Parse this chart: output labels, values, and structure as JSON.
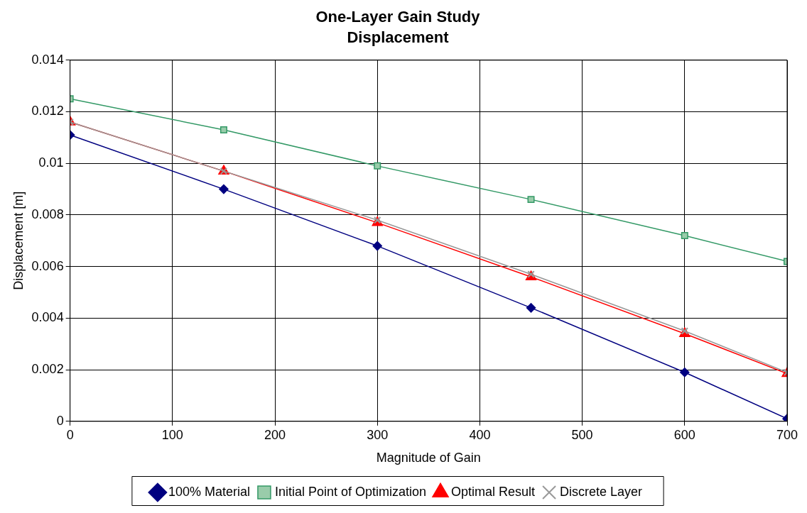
{
  "chart_data": {
    "type": "line",
    "title": "One-Layer Gain Study",
    "subtitle": "Displacement",
    "xlabel": "Magnitude of Gain",
    "ylabel": "Displacement [m]",
    "x": [
      0,
      150,
      300,
      450,
      600,
      700
    ],
    "series": [
      {
        "name": "100% Material",
        "color": "#000080",
        "marker": "diamond",
        "values": [
          0.0111,
          0.009,
          0.0068,
          0.0044,
          0.0019,
          0.0001
        ]
      },
      {
        "name": "Initial Point of Optimization",
        "color": "#339966",
        "marker": "square",
        "values": [
          0.0125,
          0.0113,
          0.0099,
          0.0086,
          0.0072,
          0.0062
        ]
      },
      {
        "name": "Optimal Result",
        "color": "#ff0000",
        "marker": "triangle",
        "values": [
          0.0116,
          0.0097,
          0.0077,
          0.0056,
          0.0034,
          0.00185
        ]
      },
      {
        "name": "Discrete Layer",
        "color": "#999999",
        "marker": "cross",
        "values": [
          0.0116,
          0.0097,
          0.0078,
          0.0057,
          0.0035,
          0.0019
        ]
      }
    ],
    "xlim": [
      0,
      700
    ],
    "xticks": [
      0,
      100,
      200,
      300,
      400,
      500,
      600,
      700
    ],
    "ylim": [
      0,
      0.014
    ],
    "yticks": [
      0,
      0.002,
      0.004,
      0.006,
      0.008,
      0.01,
      0.012,
      0.014
    ],
    "grid": true,
    "legend": "bottom",
    "line_style": "solid"
  }
}
